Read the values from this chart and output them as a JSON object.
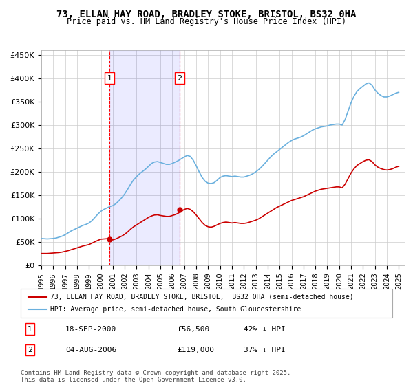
{
  "title": "73, ELLAN HAY ROAD, BRADLEY STOKE, BRISTOL, BS32 0HA",
  "subtitle": "Price paid vs. HM Land Registry's House Price Index (HPI)",
  "xlabel": "",
  "ylabel": "",
  "ylim": [
    0,
    460000
  ],
  "yticks": [
    0,
    50000,
    100000,
    150000,
    200000,
    250000,
    300000,
    350000,
    400000,
    450000
  ],
  "ytick_labels": [
    "£0",
    "£50K",
    "£100K",
    "£150K",
    "£200K",
    "£250K",
    "£300K",
    "£350K",
    "£400K",
    "£450K"
  ],
  "background_color": "#ffffff",
  "grid_color": "#cccccc",
  "hpi_color": "#6ab0de",
  "price_color": "#cc0000",
  "purchase1_date": 2000.72,
  "purchase1_price": 56500,
  "purchase1_label": "1",
  "purchase2_date": 2006.59,
  "purchase2_price": 119000,
  "purchase2_label": "2",
  "legend_line1": "73, ELLAN HAY ROAD, BRADLEY STOKE, BRISTOL,  BS32 0HA (semi-detached house)",
  "legend_line2": "HPI: Average price, semi-detached house, South Gloucestershire",
  "footnote": "Contains HM Land Registry data © Crown copyright and database right 2025.\nThis data is licensed under the Open Government Licence v3.0.",
  "table_row1_label": "1",
  "table_row1_date": "18-SEP-2000",
  "table_row1_price": "£56,500",
  "table_row1_hpi": "42% ↓ HPI",
  "table_row2_label": "2",
  "table_row2_date": "04-AUG-2006",
  "table_row2_price": "£119,000",
  "table_row2_hpi": "37% ↓ HPI",
  "hpi_data": {
    "years": [
      1995.0,
      1995.25,
      1995.5,
      1995.75,
      1996.0,
      1996.25,
      1996.5,
      1996.75,
      1997.0,
      1997.25,
      1997.5,
      1997.75,
      1998.0,
      1998.25,
      1998.5,
      1998.75,
      1999.0,
      1999.25,
      1999.5,
      1999.75,
      2000.0,
      2000.25,
      2000.5,
      2000.75,
      2001.0,
      2001.25,
      2001.5,
      2001.75,
      2002.0,
      2002.25,
      2002.5,
      2002.75,
      2003.0,
      2003.25,
      2003.5,
      2003.75,
      2004.0,
      2004.25,
      2004.5,
      2004.75,
      2005.0,
      2005.25,
      2005.5,
      2005.75,
      2006.0,
      2006.25,
      2006.5,
      2006.75,
      2007.0,
      2007.25,
      2007.5,
      2007.75,
      2008.0,
      2008.25,
      2008.5,
      2008.75,
      2009.0,
      2009.25,
      2009.5,
      2009.75,
      2010.0,
      2010.25,
      2010.5,
      2010.75,
      2011.0,
      2011.25,
      2011.5,
      2011.75,
      2012.0,
      2012.25,
      2012.5,
      2012.75,
      2013.0,
      2013.25,
      2013.5,
      2013.75,
      2014.0,
      2014.25,
      2014.5,
      2014.75,
      2015.0,
      2015.25,
      2015.5,
      2015.75,
      2016.0,
      2016.25,
      2016.5,
      2016.75,
      2017.0,
      2017.25,
      2017.5,
      2017.75,
      2018.0,
      2018.25,
      2018.5,
      2018.75,
      2019.0,
      2019.25,
      2019.5,
      2019.75,
      2020.0,
      2020.25,
      2020.5,
      2020.75,
      2021.0,
      2021.25,
      2021.5,
      2021.75,
      2022.0,
      2022.25,
      2022.5,
      2022.75,
      2023.0,
      2023.25,
      2023.5,
      2023.75,
      2024.0,
      2024.25,
      2024.5,
      2024.75,
      2025.0
    ],
    "values": [
      58000,
      57500,
      57000,
      57500,
      58000,
      59000,
      61000,
      63000,
      66000,
      70000,
      74000,
      77000,
      80000,
      83000,
      86000,
      88000,
      91000,
      96000,
      103000,
      110000,
      116000,
      120000,
      123000,
      126000,
      128000,
      132000,
      138000,
      145000,
      153000,
      163000,
      174000,
      183000,
      190000,
      196000,
      201000,
      206000,
      212000,
      218000,
      221000,
      222000,
      220000,
      218000,
      216000,
      216000,
      218000,
      221000,
      224000,
      228000,
      232000,
      235000,
      233000,
      225000,
      213000,
      200000,
      188000,
      180000,
      176000,
      175000,
      177000,
      182000,
      188000,
      191000,
      192000,
      191000,
      190000,
      191000,
      190000,
      189000,
      189000,
      191000,
      193000,
      196000,
      200000,
      205000,
      211000,
      218000,
      225000,
      232000,
      238000,
      243000,
      248000,
      253000,
      258000,
      263000,
      267000,
      270000,
      272000,
      274000,
      277000,
      281000,
      285000,
      289000,
      292000,
      294000,
      296000,
      297000,
      298000,
      300000,
      301000,
      302000,
      302000,
      300000,
      312000,
      330000,
      348000,
      362000,
      372000,
      378000,
      383000,
      388000,
      390000,
      385000,
      375000,
      368000,
      363000,
      360000,
      360000,
      362000,
      365000,
      368000,
      370000
    ]
  },
  "price_data": {
    "years": [
      1995.0,
      1995.25,
      1995.5,
      1995.75,
      1996.0,
      1996.25,
      1996.5,
      1996.75,
      1997.0,
      1997.25,
      1997.5,
      1997.75,
      1998.0,
      1998.25,
      1998.5,
      1998.75,
      1999.0,
      1999.25,
      1999.5,
      1999.75,
      2000.0,
      2000.25,
      2000.5,
      2000.75,
      2001.0,
      2001.25,
      2001.5,
      2001.75,
      2002.0,
      2002.25,
      2002.5,
      2002.75,
      2003.0,
      2003.25,
      2003.5,
      2003.75,
      2004.0,
      2004.25,
      2004.5,
      2004.75,
      2005.0,
      2005.25,
      2005.5,
      2005.75,
      2006.0,
      2006.25,
      2006.5,
      2006.75,
      2007.0,
      2007.25,
      2007.5,
      2007.75,
      2008.0,
      2008.25,
      2008.5,
      2008.75,
      2009.0,
      2009.25,
      2009.5,
      2009.75,
      2010.0,
      2010.25,
      2010.5,
      2010.75,
      2011.0,
      2011.25,
      2011.5,
      2011.75,
      2012.0,
      2012.25,
      2012.5,
      2012.75,
      2013.0,
      2013.25,
      2013.5,
      2013.75,
      2014.0,
      2014.25,
      2014.5,
      2014.75,
      2015.0,
      2015.25,
      2015.5,
      2015.75,
      2016.0,
      2016.25,
      2016.5,
      2016.75,
      2017.0,
      2017.25,
      2017.5,
      2017.75,
      2018.0,
      2018.25,
      2018.5,
      2018.75,
      2019.0,
      2019.25,
      2019.5,
      2019.75,
      2020.0,
      2020.25,
      2020.5,
      2020.75,
      2021.0,
      2021.25,
      2021.5,
      2021.75,
      2022.0,
      2022.25,
      2022.5,
      2022.75,
      2023.0,
      2023.25,
      2023.5,
      2023.75,
      2024.0,
      2024.25,
      2024.5,
      2024.75,
      2025.0
    ],
    "values": [
      26000,
      26000,
      26000,
      26500,
      27000,
      27500,
      28000,
      29000,
      30500,
      32000,
      34000,
      36000,
      38000,
      40000,
      42000,
      43500,
      45000,
      48000,
      51000,
      54000,
      56500,
      57000,
      57500,
      56500,
      55000,
      57000,
      60000,
      63000,
      67000,
      72000,
      78000,
      83000,
      87000,
      91000,
      95000,
      99000,
      103000,
      106000,
      108000,
      108500,
      107000,
      106000,
      105000,
      105000,
      107000,
      109000,
      112000,
      116000,
      120000,
      122000,
      120000,
      115000,
      108000,
      100000,
      92000,
      86000,
      83000,
      82000,
      84000,
      87000,
      90000,
      92000,
      93000,
      92000,
      91000,
      92000,
      91000,
      90000,
      90000,
      91000,
      93000,
      95000,
      97000,
      100000,
      104000,
      108000,
      112000,
      116000,
      120000,
      124000,
      127000,
      130000,
      133000,
      136000,
      139000,
      141000,
      143000,
      145000,
      147000,
      150000,
      153000,
      156000,
      159000,
      161000,
      163000,
      164000,
      165000,
      166000,
      167000,
      168000,
      168000,
      166000,
      174000,
      186000,
      198000,
      207000,
      214000,
      218000,
      222000,
      225000,
      226000,
      222000,
      215000,
      210000,
      207000,
      205000,
      204000,
      205000,
      207000,
      210000,
      212000
    ]
  }
}
